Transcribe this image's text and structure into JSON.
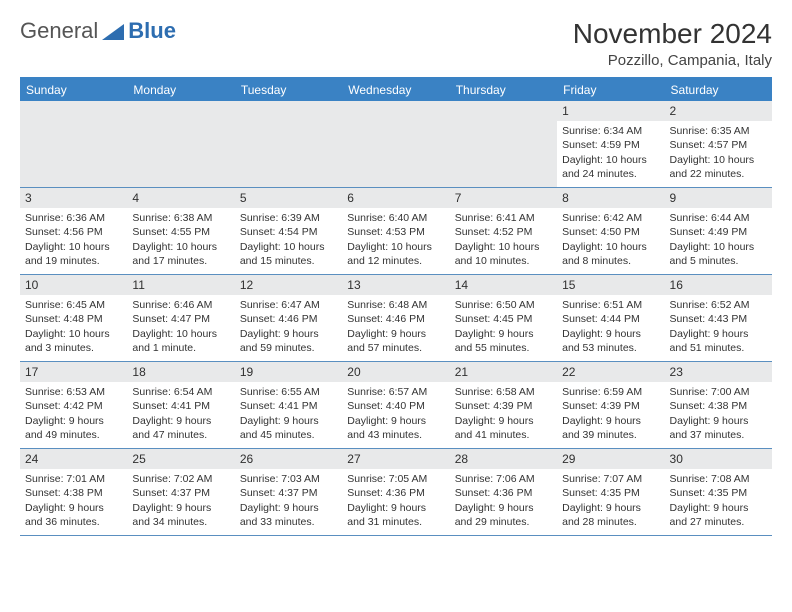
{
  "logo": {
    "text1": "General",
    "text2": "Blue",
    "triangle_color": "#2d6db0"
  },
  "header": {
    "month_title": "November 2024",
    "location": "Pozzillo, Campania, Italy"
  },
  "colors": {
    "header_bg": "#3a82c4",
    "header_text": "#ffffff",
    "daynum_bg": "#e8e9ea",
    "rule": "#5a8fc0",
    "page_bg": "#ffffff",
    "text": "#333333"
  },
  "daynames": [
    "Sunday",
    "Monday",
    "Tuesday",
    "Wednesday",
    "Thursday",
    "Friday",
    "Saturday"
  ],
  "weeks": [
    [
      {
        "n": "",
        "sunrise": "",
        "sunset": "",
        "daylight": ""
      },
      {
        "n": "",
        "sunrise": "",
        "sunset": "",
        "daylight": ""
      },
      {
        "n": "",
        "sunrise": "",
        "sunset": "",
        "daylight": ""
      },
      {
        "n": "",
        "sunrise": "",
        "sunset": "",
        "daylight": ""
      },
      {
        "n": "",
        "sunrise": "",
        "sunset": "",
        "daylight": ""
      },
      {
        "n": "1",
        "sunrise": "Sunrise: 6:34 AM",
        "sunset": "Sunset: 4:59 PM",
        "daylight": "Daylight: 10 hours and 24 minutes."
      },
      {
        "n": "2",
        "sunrise": "Sunrise: 6:35 AM",
        "sunset": "Sunset: 4:57 PM",
        "daylight": "Daylight: 10 hours and 22 minutes."
      }
    ],
    [
      {
        "n": "3",
        "sunrise": "Sunrise: 6:36 AM",
        "sunset": "Sunset: 4:56 PM",
        "daylight": "Daylight: 10 hours and 19 minutes."
      },
      {
        "n": "4",
        "sunrise": "Sunrise: 6:38 AM",
        "sunset": "Sunset: 4:55 PM",
        "daylight": "Daylight: 10 hours and 17 minutes."
      },
      {
        "n": "5",
        "sunrise": "Sunrise: 6:39 AM",
        "sunset": "Sunset: 4:54 PM",
        "daylight": "Daylight: 10 hours and 15 minutes."
      },
      {
        "n": "6",
        "sunrise": "Sunrise: 6:40 AM",
        "sunset": "Sunset: 4:53 PM",
        "daylight": "Daylight: 10 hours and 12 minutes."
      },
      {
        "n": "7",
        "sunrise": "Sunrise: 6:41 AM",
        "sunset": "Sunset: 4:52 PM",
        "daylight": "Daylight: 10 hours and 10 minutes."
      },
      {
        "n": "8",
        "sunrise": "Sunrise: 6:42 AM",
        "sunset": "Sunset: 4:50 PM",
        "daylight": "Daylight: 10 hours and 8 minutes."
      },
      {
        "n": "9",
        "sunrise": "Sunrise: 6:44 AM",
        "sunset": "Sunset: 4:49 PM",
        "daylight": "Daylight: 10 hours and 5 minutes."
      }
    ],
    [
      {
        "n": "10",
        "sunrise": "Sunrise: 6:45 AM",
        "sunset": "Sunset: 4:48 PM",
        "daylight": "Daylight: 10 hours and 3 minutes."
      },
      {
        "n": "11",
        "sunrise": "Sunrise: 6:46 AM",
        "sunset": "Sunset: 4:47 PM",
        "daylight": "Daylight: 10 hours and 1 minute."
      },
      {
        "n": "12",
        "sunrise": "Sunrise: 6:47 AM",
        "sunset": "Sunset: 4:46 PM",
        "daylight": "Daylight: 9 hours and 59 minutes."
      },
      {
        "n": "13",
        "sunrise": "Sunrise: 6:48 AM",
        "sunset": "Sunset: 4:46 PM",
        "daylight": "Daylight: 9 hours and 57 minutes."
      },
      {
        "n": "14",
        "sunrise": "Sunrise: 6:50 AM",
        "sunset": "Sunset: 4:45 PM",
        "daylight": "Daylight: 9 hours and 55 minutes."
      },
      {
        "n": "15",
        "sunrise": "Sunrise: 6:51 AM",
        "sunset": "Sunset: 4:44 PM",
        "daylight": "Daylight: 9 hours and 53 minutes."
      },
      {
        "n": "16",
        "sunrise": "Sunrise: 6:52 AM",
        "sunset": "Sunset: 4:43 PM",
        "daylight": "Daylight: 9 hours and 51 minutes."
      }
    ],
    [
      {
        "n": "17",
        "sunrise": "Sunrise: 6:53 AM",
        "sunset": "Sunset: 4:42 PM",
        "daylight": "Daylight: 9 hours and 49 minutes."
      },
      {
        "n": "18",
        "sunrise": "Sunrise: 6:54 AM",
        "sunset": "Sunset: 4:41 PM",
        "daylight": "Daylight: 9 hours and 47 minutes."
      },
      {
        "n": "19",
        "sunrise": "Sunrise: 6:55 AM",
        "sunset": "Sunset: 4:41 PM",
        "daylight": "Daylight: 9 hours and 45 minutes."
      },
      {
        "n": "20",
        "sunrise": "Sunrise: 6:57 AM",
        "sunset": "Sunset: 4:40 PM",
        "daylight": "Daylight: 9 hours and 43 minutes."
      },
      {
        "n": "21",
        "sunrise": "Sunrise: 6:58 AM",
        "sunset": "Sunset: 4:39 PM",
        "daylight": "Daylight: 9 hours and 41 minutes."
      },
      {
        "n": "22",
        "sunrise": "Sunrise: 6:59 AM",
        "sunset": "Sunset: 4:39 PM",
        "daylight": "Daylight: 9 hours and 39 minutes."
      },
      {
        "n": "23",
        "sunrise": "Sunrise: 7:00 AM",
        "sunset": "Sunset: 4:38 PM",
        "daylight": "Daylight: 9 hours and 37 minutes."
      }
    ],
    [
      {
        "n": "24",
        "sunrise": "Sunrise: 7:01 AM",
        "sunset": "Sunset: 4:38 PM",
        "daylight": "Daylight: 9 hours and 36 minutes."
      },
      {
        "n": "25",
        "sunrise": "Sunrise: 7:02 AM",
        "sunset": "Sunset: 4:37 PM",
        "daylight": "Daylight: 9 hours and 34 minutes."
      },
      {
        "n": "26",
        "sunrise": "Sunrise: 7:03 AM",
        "sunset": "Sunset: 4:37 PM",
        "daylight": "Daylight: 9 hours and 33 minutes."
      },
      {
        "n": "27",
        "sunrise": "Sunrise: 7:05 AM",
        "sunset": "Sunset: 4:36 PM",
        "daylight": "Daylight: 9 hours and 31 minutes."
      },
      {
        "n": "28",
        "sunrise": "Sunrise: 7:06 AM",
        "sunset": "Sunset: 4:36 PM",
        "daylight": "Daylight: 9 hours and 29 minutes."
      },
      {
        "n": "29",
        "sunrise": "Sunrise: 7:07 AM",
        "sunset": "Sunset: 4:35 PM",
        "daylight": "Daylight: 9 hours and 28 minutes."
      },
      {
        "n": "30",
        "sunrise": "Sunrise: 7:08 AM",
        "sunset": "Sunset: 4:35 PM",
        "daylight": "Daylight: 9 hours and 27 minutes."
      }
    ]
  ]
}
